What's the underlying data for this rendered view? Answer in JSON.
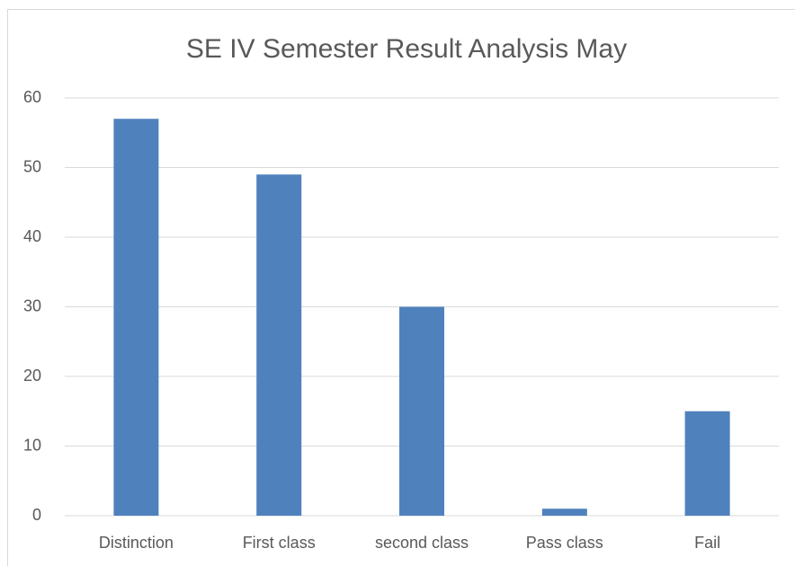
{
  "chart_data": {
    "type": "bar",
    "title": "SE IV Semester Result Analysis May",
    "categories": [
      "Distinction",
      "First class",
      "second class",
      "Pass class",
      "Fail"
    ],
    "values": [
      57,
      49,
      30,
      1,
      15
    ],
    "color": "#4f81bd",
    "ylim": [
      0,
      60
    ],
    "yticks": [
      0,
      10,
      20,
      30,
      40,
      50,
      60
    ],
    "grid": true
  }
}
